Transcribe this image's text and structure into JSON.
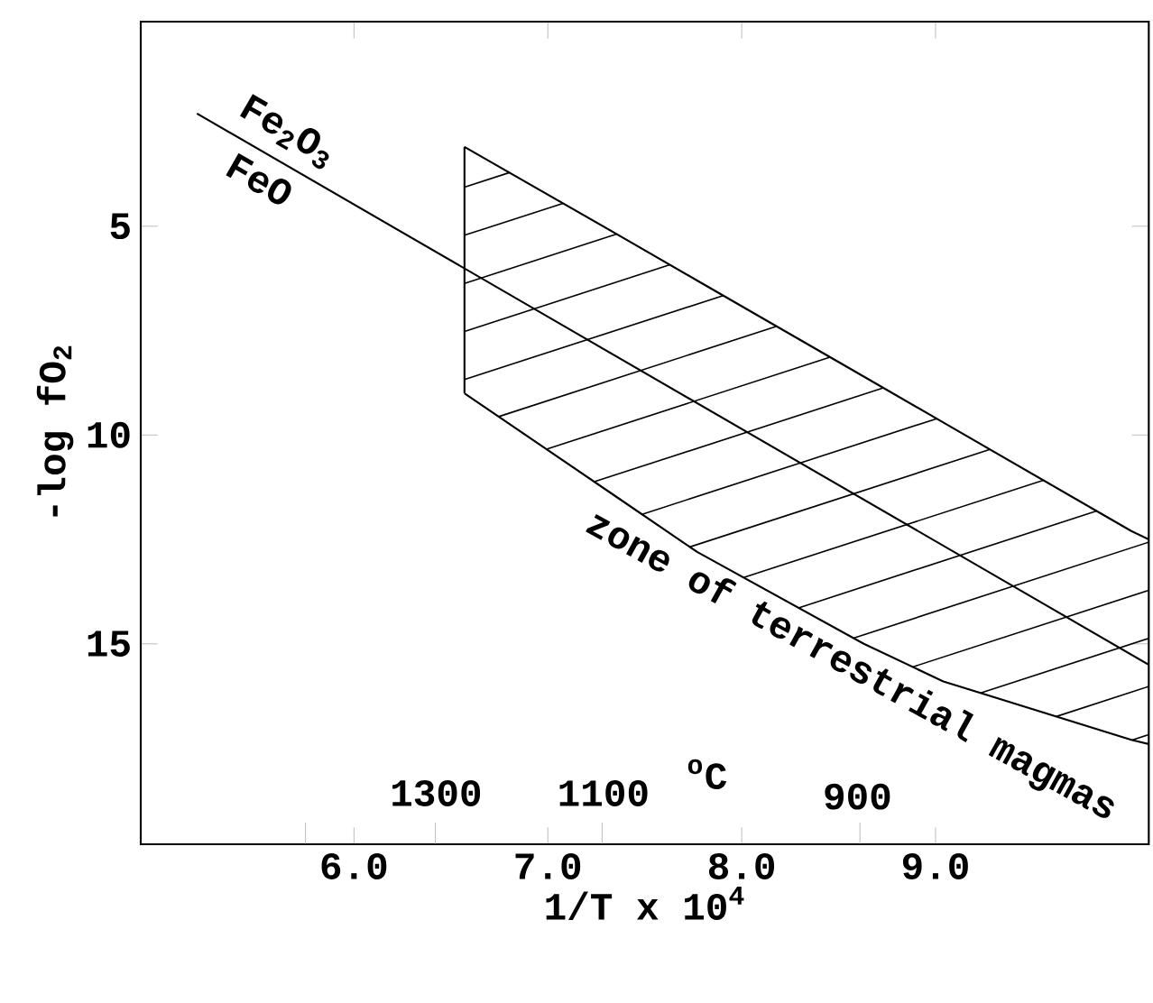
{
  "chart_data": {
    "type": "line",
    "xlabel": "1/T x 10$^{4}$",
    "ylabel": "-log fO$_{2}$",
    "xlim": [
      4.9,
      10.1
    ],
    "ylim": [
      19.8,
      0.1
    ],
    "xticks": [
      {
        "value": 5.75,
        "label": null
      },
      {
        "value": 6,
        "label": "6.0"
      },
      {
        "value": 6.42,
        "label": null
      },
      {
        "value": 7,
        "label": "7.0"
      },
      {
        "value": 7.28,
        "label": null
      },
      {
        "value": 8,
        "label": "8.0"
      },
      {
        "value": 8.61,
        "label": null
      },
      {
        "value": 9,
        "label": "9.0"
      }
    ],
    "yticks": [
      5,
      10,
      15
    ],
    "annotations": [
      {
        "text": "Fe$_{2}$O$_{3}$",
        "x": 5.58,
        "y": 3.35
      },
      {
        "text": "FeO",
        "x": 5.58,
        "y": 3.35
      },
      "1300",
      "1100",
      "$^{o}$C",
      "900"
    ],
    "series": [
      {
        "color": "#000000",
        "x": [
          5.19,
          10.1
        ],
        "values": [
          2.3,
          15.5
        ]
      },
      {
        "color": "#000000",
        "x": [
          6.57,
          7.36,
          7.77,
          8.63,
          9.04,
          10.01,
          10.1
        ],
        "values": [
          3.1,
          5.2,
          6.3,
          8.6,
          9.7,
          12.3,
          12.5
        ]
      },
      {
        "name": "zone of terrestrial magmas",
        "color": "#000000",
        "x": [
          6.57,
          7.36,
          7.77,
          8.63,
          9.04,
          10.01,
          10.1
        ],
        "values": [
          9.0,
          11.5,
          12.8,
          15.0,
          15.9,
          17.3,
          17.4
        ]
      }
    ]
  }
}
